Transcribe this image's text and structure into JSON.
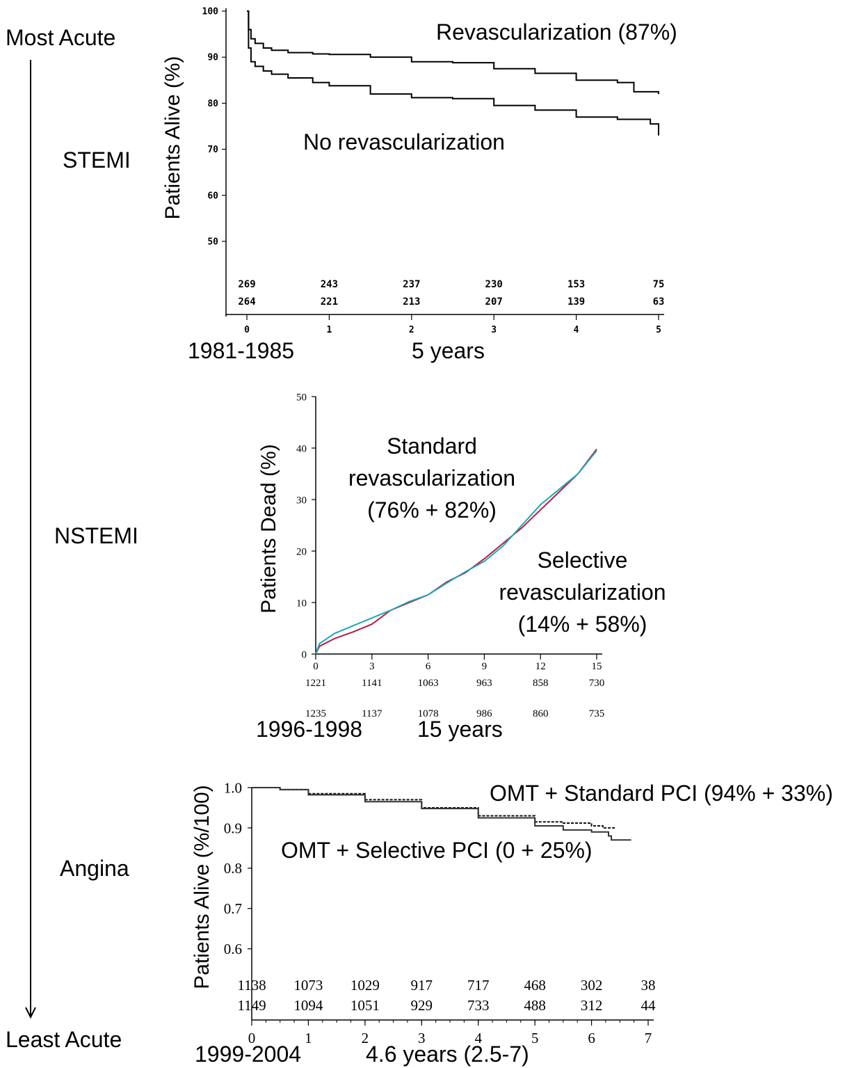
{
  "acuity_scale": {
    "top_label": "Most Acute",
    "bottom_label": "Least Acute",
    "categories": [
      "STEMI",
      "NSTEMI",
      "Angina"
    ]
  },
  "chart_data": [
    {
      "type": "line",
      "title": "",
      "ylabel": "Patients Alive (%)",
      "xlabel": "",
      "period": "1981-1985",
      "followup": "5 years",
      "xlim": [
        0,
        5
      ],
      "ylim": [
        45,
        100
      ],
      "x_ticks": [
        "0",
        "1",
        "2",
        "3",
        "4",
        "5"
      ],
      "y_ticks": [
        "100",
        "90",
        "80",
        "70",
        "60",
        "50"
      ],
      "series": [
        {
          "name": "Revascularization (87%)",
          "color": "#000000",
          "x": [
            0,
            0.02,
            0.05,
            0.1,
            0.2,
            0.3,
            0.5,
            0.8,
            1.0,
            1.5,
            2.0,
            2.5,
            3.0,
            3.5,
            4.0,
            4.5,
            4.7,
            5.0
          ],
          "y": [
            100,
            96,
            94,
            93,
            92,
            91.5,
            91,
            90.7,
            90.6,
            90,
            89,
            88.8,
            87.5,
            86.5,
            85,
            84.5,
            82.5,
            82
          ]
        },
        {
          "name": "No revascularization",
          "color": "#000000",
          "x": [
            0,
            0.02,
            0.05,
            0.1,
            0.2,
            0.3,
            0.5,
            0.8,
            1.0,
            1.5,
            2.0,
            2.5,
            3.0,
            3.5,
            4.0,
            4.5,
            4.9,
            5.0
          ],
          "y": [
            100,
            92,
            89,
            88,
            87,
            86.3,
            85.5,
            84.5,
            83.8,
            82,
            81.2,
            81,
            79.5,
            78.5,
            77,
            76.5,
            75.5,
            73
          ]
        }
      ],
      "numbers_at_risk": [
        [
          "269",
          "243",
          "237",
          "230",
          "153",
          "75"
        ],
        [
          "264",
          "221",
          "213",
          "207",
          "139",
          "63"
        ]
      ]
    },
    {
      "type": "line",
      "title": "",
      "ylabel": "Patients Dead (%)",
      "xlabel": "",
      "period": "1996-1998",
      "followup": "15 years",
      "xlim": [
        0,
        15
      ],
      "ylim": [
        0,
        50
      ],
      "x_ticks": [
        "0",
        "3",
        "6",
        "9",
        "12",
        "15"
      ],
      "y_ticks": [
        "0",
        "10",
        "20",
        "30",
        "40",
        "50"
      ],
      "series": [
        {
          "name": "Standard revascularization (76% + 82%)",
          "color": "#b22040",
          "x": [
            0,
            0.2,
            1,
            2,
            3,
            4,
            5,
            6,
            7,
            8,
            9,
            10,
            11,
            12,
            13,
            14,
            15
          ],
          "y": [
            0,
            1.5,
            3,
            4.3,
            5.8,
            8.5,
            10,
            11.5,
            14,
            15.8,
            18.5,
            21.5,
            24.5,
            28,
            31.5,
            35,
            39.8
          ]
        },
        {
          "name": "Selective revascularization (14% + 58%)",
          "color": "#21a5b8",
          "x": [
            0,
            0.2,
            1,
            2,
            3,
            4,
            5,
            6,
            7,
            8,
            9,
            10,
            11,
            12,
            13,
            14,
            15
          ],
          "y": [
            0,
            2,
            4,
            5.5,
            7,
            8.5,
            10.2,
            11.5,
            13.8,
            16,
            18,
            21,
            25,
            29,
            32,
            35,
            39.5
          ]
        }
      ],
      "numbers_at_risk": [
        [
          "1221",
          "1141",
          "1063",
          "963",
          "858",
          "730"
        ],
        [
          "1235",
          "1137",
          "1078",
          "986",
          "860",
          "735"
        ]
      ]
    },
    {
      "type": "line",
      "title": "",
      "ylabel": "Patients Alive (%/100)",
      "xlabel": "",
      "period": "1999-2004",
      "followup": "4.6 years (2.5-7)",
      "xlim": [
        0,
        7
      ],
      "ylim": [
        0.52,
        1.0
      ],
      "x_ticks": [
        "0",
        "1",
        "2",
        "3",
        "4",
        "5",
        "6",
        "7"
      ],
      "y_ticks": [
        "1.0",
        "0.9",
        "0.8",
        "0.7",
        "0.6"
      ],
      "series": [
        {
          "name": "OMT + Standard PCI (94% + 33%)",
          "color": "#111111",
          "dashed": true,
          "x": [
            0,
            0.5,
            1,
            2,
            3,
            4,
            5,
            5.5,
            6,
            6.2,
            6.4
          ],
          "y": [
            1.0,
            0.995,
            0.985,
            0.97,
            0.95,
            0.93,
            0.915,
            0.912,
            0.905,
            0.9,
            0.895
          ]
        },
        {
          "name": "OMT + Selective PCI (0 + 25%)",
          "color": "#333333",
          "dashed": false,
          "x": [
            0,
            0.5,
            1,
            2,
            3,
            4,
            5,
            5.5,
            6,
            6.3,
            6.35,
            6.7
          ],
          "y": [
            1.0,
            0.995,
            0.982,
            0.965,
            0.948,
            0.925,
            0.905,
            0.895,
            0.89,
            0.88,
            0.87,
            0.87
          ]
        }
      ],
      "numbers_at_risk": [
        [
          "1138",
          "1073",
          "1029",
          "917",
          "717",
          "468",
          "302",
          "38"
        ],
        [
          "1149",
          "1094",
          "1051",
          "929",
          "733",
          "488",
          "312",
          "44"
        ]
      ]
    }
  ]
}
